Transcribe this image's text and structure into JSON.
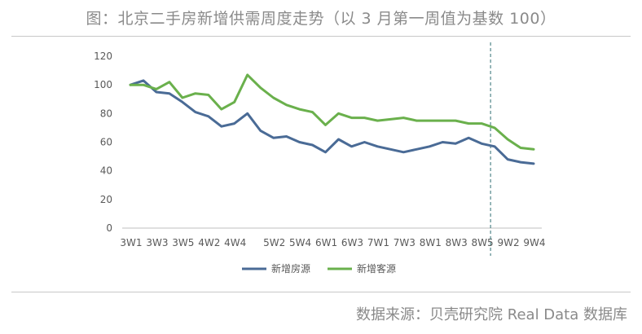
{
  "title": "图：北京二手房新增供需周度走势（以 3 月第一周值为基数 100）",
  "source": "数据来源：贝壳研究院 Real Data 数据库",
  "colors": {
    "series1": "#4a6b96",
    "series2": "#6ab04c",
    "axis": "#bfbfbf",
    "divider": "#2f6f73",
    "text": "#595959"
  },
  "chart_data": {
    "type": "line",
    "title": "",
    "xlabel": "",
    "ylabel": "",
    "ylim": [
      0,
      120
    ],
    "yticks": [
      0,
      20,
      40,
      60,
      80,
      100,
      120
    ],
    "x": [
      "3W1",
      "3W2",
      "3W3",
      "3W4",
      "3W5",
      "4W1",
      "4W2",
      "4W3",
      "4W4",
      "4W5",
      "5W1",
      "5W2",
      "5W3",
      "5W4",
      "5W5",
      "6W1",
      "6W2",
      "6W3",
      "6W4",
      "7W1",
      "7W2",
      "7W3",
      "7W4",
      "8W1",
      "8W2",
      "8W3",
      "8W4",
      "8W5",
      "9W1",
      "9W2",
      "9W3",
      "9W4"
    ],
    "x_tick_labels": [
      "3W1",
      "3W3",
      "3W5",
      "4W2",
      "4W4",
      "5W2",
      "5W4",
      "6W1",
      "6W3",
      "7W1",
      "7W3",
      "8W1",
      "8W3",
      "8W5",
      "9W2",
      "9W4"
    ],
    "series": [
      {
        "name": "新增房源",
        "values": [
          100,
          103,
          95,
          94,
          88,
          81,
          78,
          71,
          73,
          80,
          68,
          63,
          64,
          60,
          58,
          53,
          62,
          57,
          60,
          57,
          55,
          53,
          55,
          57,
          60,
          59,
          63,
          59,
          57,
          48,
          46,
          45
        ]
      },
      {
        "name": "新增客源",
        "values": [
          100,
          100,
          97,
          102,
          91,
          94,
          93,
          83,
          88,
          107,
          98,
          91,
          86,
          83,
          81,
          72,
          80,
          77,
          77,
          75,
          76,
          77,
          75,
          75,
          75,
          75,
          73,
          73,
          70,
          62,
          56,
          55
        ]
      }
    ],
    "vertical_marker_at": "9W1",
    "grid": false,
    "legend": "bottom"
  }
}
